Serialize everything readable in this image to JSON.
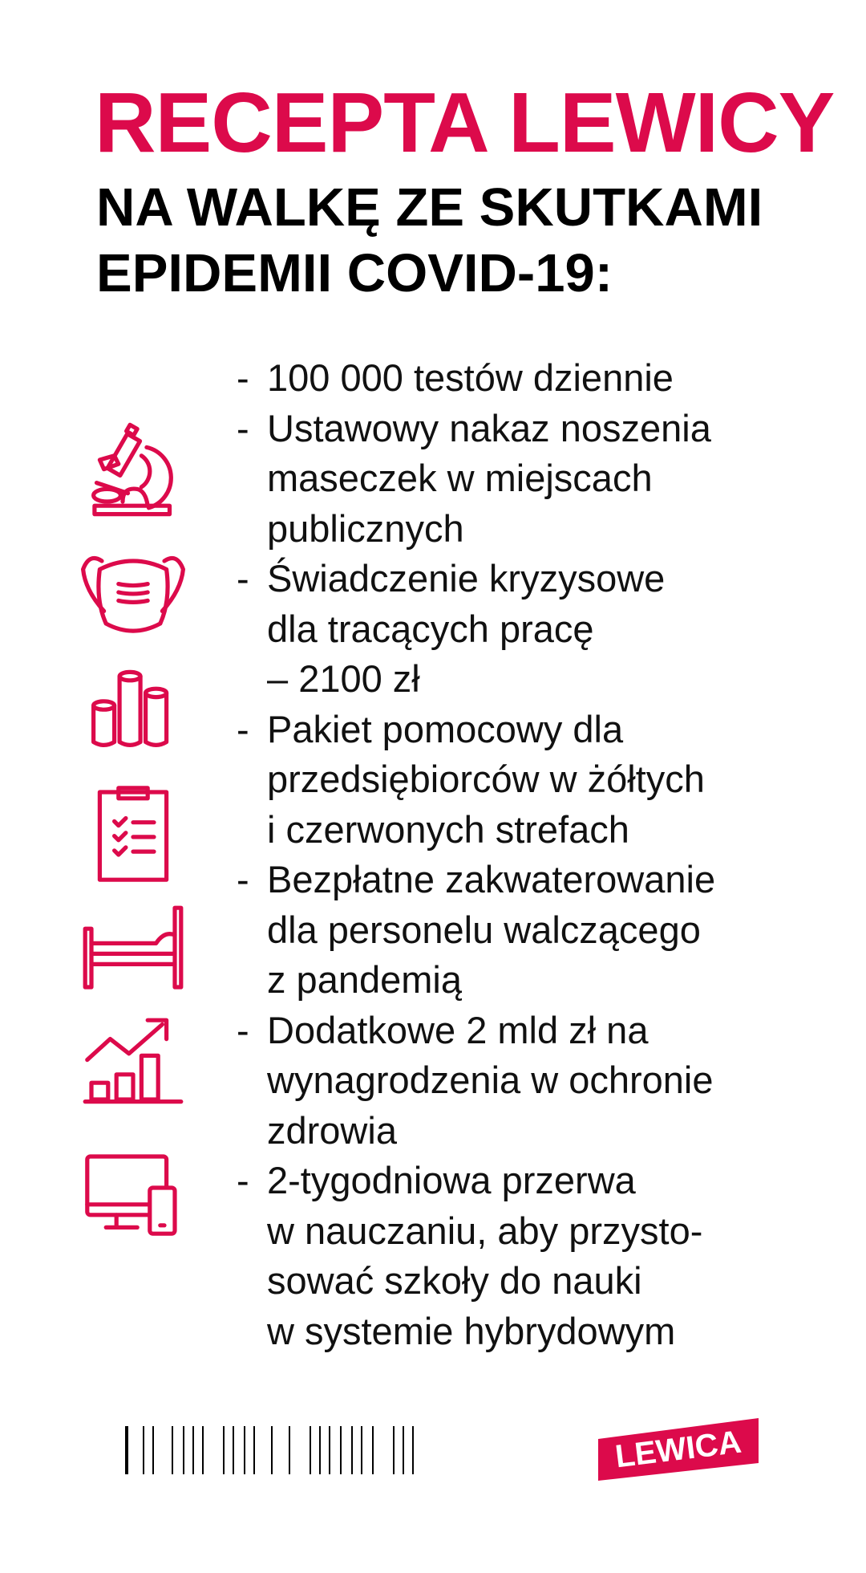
{
  "header": {
    "title": "RECEPTA LEWICY",
    "subtitle_lines": [
      "NA WALKĘ ZE SKUTKAMI",
      "EPIDEMII COVID-19:"
    ]
  },
  "items": [
    {
      "lines": [
        "100 000 testów dziennie"
      ]
    },
    {
      "lines": [
        "Ustawowy nakaz noszenia",
        "maseczek w miejscach",
        "publicznych"
      ]
    },
    {
      "lines": [
        "Świadczenie kryzysowe",
        "dla tracących pracę",
        "– 2100 zł"
      ]
    },
    {
      "lines": [
        "Pakiet pomocowy dla",
        "przedsiębiorców w żółtych",
        "i czerwonych strefach"
      ]
    },
    {
      "lines": [
        "Bezpłatne zakwaterowanie",
        "dla personelu walczącego",
        "z pandemią"
      ]
    },
    {
      "lines": [
        "Dodatkowe 2 mld zł na",
        "wynagrodzenia w ochronie",
        "zdrowia"
      ]
    },
    {
      "lines": [
        "2-tygodniowa przerwa",
        "w nauczaniu, aby przysto-",
        "sować szkoły do nauki",
        "w systemie hybrydowym"
      ]
    }
  ],
  "dash": "-",
  "icons": [
    "microscope-icon",
    "face-mask-icon",
    "coins-icon",
    "clipboard-checklist-icon",
    "bed-icon",
    "growth-chart-icon",
    "devices-icon"
  ],
  "logo": {
    "text": "LEWICA"
  },
  "colors": {
    "accent": "#DC0A4B",
    "text": "#111111"
  }
}
